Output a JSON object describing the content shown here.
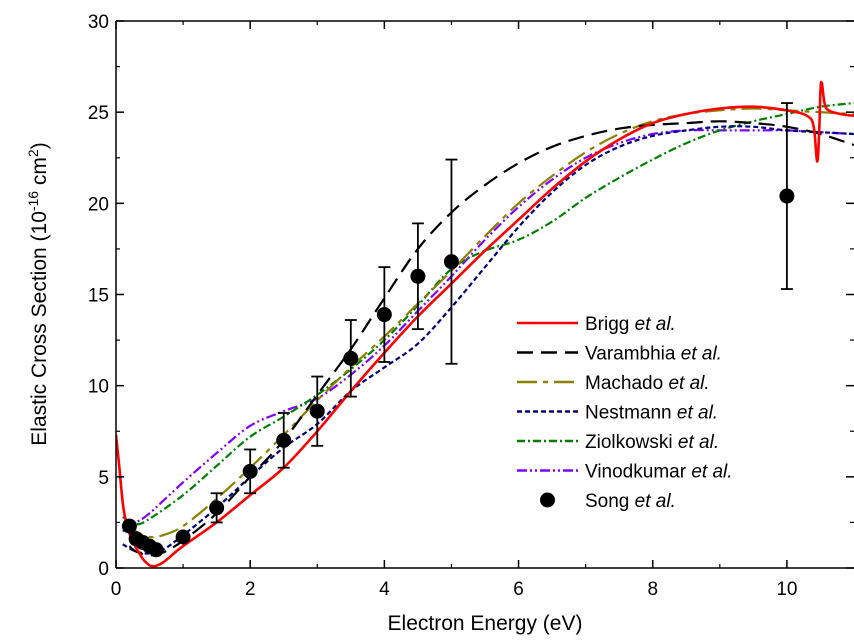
{
  "chart_data": {
    "type": "line",
    "xlabel": "Electron Energy (eV)",
    "ylabel": {
      "main": "Elastic Cross Section (10",
      "exp1": "-16",
      "mid": " cm",
      "exp2": "2",
      "end": ")"
    },
    "xlim": [
      0,
      11
    ],
    "ylim": [
      0,
      30
    ],
    "xticks": [
      0,
      2,
      4,
      6,
      8,
      10
    ],
    "yticks": [
      0,
      5,
      10,
      15,
      20,
      25,
      30
    ],
    "grid": false,
    "legend_position": "right",
    "series": [
      {
        "name": "Brigg",
        "name_suffix": "et al.",
        "color": "#ff0000",
        "dash": "solid",
        "points": [
          [
            0.0,
            7.3
          ],
          [
            0.05,
            5.5
          ],
          [
            0.1,
            3.6
          ],
          [
            0.15,
            2.5
          ],
          [
            0.2,
            1.9
          ],
          [
            0.25,
            1.5
          ],
          [
            0.3,
            1.1
          ],
          [
            0.35,
            0.8
          ],
          [
            0.4,
            0.5
          ],
          [
            0.45,
            0.3
          ],
          [
            0.5,
            0.15
          ],
          [
            0.55,
            0.1
          ],
          [
            0.6,
            0.12
          ],
          [
            0.7,
            0.3
          ],
          [
            0.8,
            0.6
          ],
          [
            1.0,
            1.2
          ],
          [
            1.5,
            2.5
          ],
          [
            2.0,
            4.0
          ],
          [
            2.5,
            5.5
          ],
          [
            3.0,
            7.5
          ],
          [
            3.5,
            9.7
          ],
          [
            4.0,
            11.8
          ],
          [
            4.5,
            13.8
          ],
          [
            5.0,
            15.6
          ],
          [
            5.5,
            17.4
          ],
          [
            6.0,
            19.1
          ],
          [
            6.5,
            20.8
          ],
          [
            7.0,
            22.3
          ],
          [
            7.5,
            23.5
          ],
          [
            8.0,
            24.4
          ],
          [
            8.5,
            24.9
          ],
          [
            9.0,
            25.2
          ],
          [
            9.5,
            25.3
          ],
          [
            10.0,
            25.1
          ],
          [
            10.3,
            24.8
          ],
          [
            10.4,
            24.2
          ],
          [
            10.45,
            22.3
          ],
          [
            10.48,
            23.8
          ],
          [
            10.5,
            26.2
          ],
          [
            10.52,
            26.6
          ],
          [
            10.56,
            25.5
          ],
          [
            10.62,
            25.1
          ],
          [
            10.8,
            24.9
          ],
          [
            11.0,
            24.8
          ]
        ]
      },
      {
        "name": "Varambhia",
        "name_suffix": "et al.",
        "color": "#000000",
        "dash": "16 8",
        "points": [
          [
            0.2,
            1.2
          ],
          [
            0.3,
            0.9
          ],
          [
            0.5,
            0.7
          ],
          [
            0.7,
            0.85
          ],
          [
            1.0,
            1.5
          ],
          [
            1.5,
            3.0
          ],
          [
            2.0,
            5.0
          ],
          [
            2.5,
            7.0
          ],
          [
            3.0,
            9.5
          ],
          [
            3.5,
            12.0
          ],
          [
            4.0,
            14.8
          ],
          [
            4.5,
            17.5
          ],
          [
            5.0,
            19.5
          ],
          [
            5.5,
            21.0
          ],
          [
            6.0,
            22.2
          ],
          [
            6.5,
            23.1
          ],
          [
            7.0,
            23.7
          ],
          [
            7.5,
            24.1
          ],
          [
            8.0,
            24.3
          ],
          [
            8.5,
            24.4
          ],
          [
            9.0,
            24.5
          ],
          [
            9.5,
            24.4
          ],
          [
            10.0,
            24.2
          ],
          [
            10.5,
            23.8
          ],
          [
            11.0,
            23.2
          ]
        ]
      },
      {
        "name": "Machado",
        "name_suffix": "et al.",
        "color": "#8b8000",
        "dash": "20 6 5 6",
        "points": [
          [
            0.15,
            2.4
          ],
          [
            0.3,
            2.0
          ],
          [
            0.5,
            1.7
          ],
          [
            0.7,
            1.8
          ],
          [
            1.0,
            2.3
          ],
          [
            1.5,
            3.8
          ],
          [
            2.0,
            5.5
          ],
          [
            2.5,
            7.3
          ],
          [
            3.0,
            9.2
          ],
          [
            3.5,
            11.0
          ],
          [
            4.0,
            12.7
          ],
          [
            4.5,
            14.5
          ],
          [
            5.0,
            16.3
          ],
          [
            5.5,
            18.2
          ],
          [
            6.0,
            20.0
          ],
          [
            6.5,
            21.5
          ],
          [
            7.0,
            22.8
          ],
          [
            7.5,
            23.8
          ],
          [
            8.0,
            24.5
          ],
          [
            8.5,
            24.9
          ],
          [
            9.0,
            25.1
          ],
          [
            9.5,
            25.2
          ],
          [
            10.0,
            25.1
          ],
          [
            10.5,
            25.0
          ],
          [
            11.0,
            24.9
          ]
        ]
      },
      {
        "name": "Nestmann",
        "name_suffix": "et al.",
        "color": "#000080",
        "dash": "5 3",
        "points": [
          [
            0.1,
            1.3
          ],
          [
            0.3,
            0.9
          ],
          [
            0.5,
            0.8
          ],
          [
            0.7,
            1.0
          ],
          [
            1.0,
            1.8
          ],
          [
            1.5,
            3.3
          ],
          [
            2.0,
            5.0
          ],
          [
            2.5,
            6.6
          ],
          [
            3.0,
            7.9
          ],
          [
            3.5,
            9.7
          ],
          [
            4.0,
            11.0
          ],
          [
            4.5,
            12.3
          ],
          [
            5.0,
            14.3
          ],
          [
            5.5,
            16.5
          ],
          [
            6.0,
            18.7
          ],
          [
            6.5,
            20.6
          ],
          [
            7.0,
            22.1
          ],
          [
            7.5,
            23.1
          ],
          [
            8.0,
            23.7
          ],
          [
            8.5,
            24.0
          ],
          [
            9.0,
            24.2
          ],
          [
            9.5,
            24.2
          ],
          [
            10.0,
            24.0
          ],
          [
            10.5,
            23.9
          ],
          [
            11.0,
            23.8
          ]
        ]
      },
      {
        "name": "Ziolkowski",
        "name_suffix": "et al.",
        "color": "#008000",
        "dash": "8 3 2 3",
        "points": [
          [
            0.1,
            2.8
          ],
          [
            0.3,
            2.4
          ],
          [
            0.5,
            2.7
          ],
          [
            1.0,
            4.0
          ],
          [
            1.5,
            5.6
          ],
          [
            2.0,
            7.2
          ],
          [
            2.5,
            8.3
          ],
          [
            3.0,
            9.5
          ],
          [
            3.5,
            10.9
          ],
          [
            4.0,
            12.5
          ],
          [
            4.5,
            14.4
          ],
          [
            5.0,
            16.4
          ],
          [
            5.5,
            17.4
          ],
          [
            6.0,
            18.0
          ],
          [
            6.5,
            19.0
          ],
          [
            7.0,
            20.3
          ],
          [
            7.5,
            21.4
          ],
          [
            8.0,
            22.4
          ],
          [
            8.5,
            23.3
          ],
          [
            9.0,
            24.0
          ],
          [
            9.5,
            24.5
          ],
          [
            10.0,
            24.9
          ],
          [
            10.5,
            25.3
          ],
          [
            11.0,
            25.5
          ]
        ]
      },
      {
        "name": "Vinodkumar",
        "name_suffix": "et al.",
        "color": "#8000ff",
        "dash": "10 3 2 3 2 3",
        "points": [
          [
            0.1,
            2.0
          ],
          [
            0.3,
            2.5
          ],
          [
            0.5,
            3.0
          ],
          [
            1.0,
            4.7
          ],
          [
            1.5,
            6.3
          ],
          [
            2.0,
            7.8
          ],
          [
            2.5,
            8.6
          ],
          [
            3.0,
            9.3
          ],
          [
            3.5,
            10.6
          ],
          [
            4.0,
            12.2
          ],
          [
            4.5,
            14.1
          ],
          [
            5.0,
            16.0
          ],
          [
            5.5,
            18.0
          ],
          [
            6.0,
            19.8
          ],
          [
            6.5,
            21.3
          ],
          [
            7.0,
            22.5
          ],
          [
            7.5,
            23.3
          ],
          [
            8.0,
            23.8
          ],
          [
            8.5,
            24.0
          ],
          [
            9.0,
            24.0
          ],
          [
            9.5,
            24.0
          ],
          [
            10.0,
            24.0
          ],
          [
            10.5,
            23.9
          ],
          [
            11.0,
            23.8
          ]
        ]
      }
    ],
    "measurement": {
      "name": "Song",
      "name_suffix": "et al.",
      "color": "#000000",
      "points": [
        {
          "x": 0.2,
          "y": 2.3,
          "err": 0
        },
        {
          "x": 0.3,
          "y": 1.6,
          "err": 0
        },
        {
          "x": 0.4,
          "y": 1.4,
          "err": 0
        },
        {
          "x": 0.5,
          "y": 1.2,
          "err": 0
        },
        {
          "x": 0.6,
          "y": 1.0,
          "err": 0
        },
        {
          "x": 1.0,
          "y": 1.7,
          "err": 0
        },
        {
          "x": 1.5,
          "y": 3.3,
          "err": 0.8
        },
        {
          "x": 2.0,
          "y": 5.3,
          "err": 1.2
        },
        {
          "x": 2.5,
          "y": 7.0,
          "err": 1.5
        },
        {
          "x": 3.0,
          "y": 8.6,
          "err": 1.9
        },
        {
          "x": 3.5,
          "y": 11.5,
          "err": 2.1
        },
        {
          "x": 4.0,
          "y": 13.9,
          "err": 2.6
        },
        {
          "x": 4.5,
          "y": 16.0,
          "err": 2.9
        },
        {
          "x": 5.0,
          "y": 16.8,
          "err": 5.6
        },
        {
          "x": 10.0,
          "y": 20.4,
          "err": 5.1
        }
      ]
    }
  }
}
